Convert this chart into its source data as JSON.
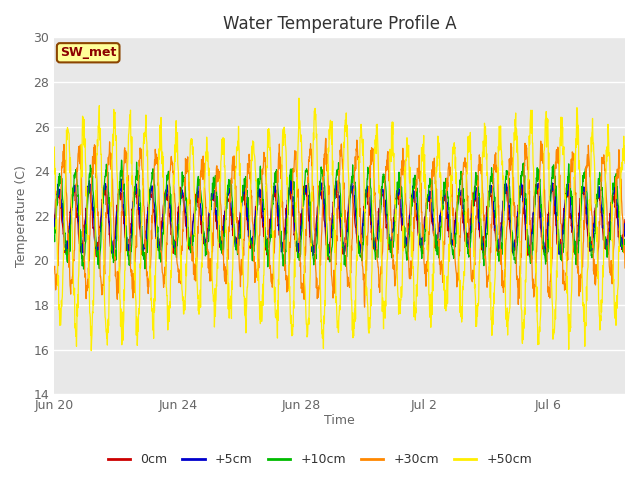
{
  "title": "Water Temperature Profile A",
  "xlabel": "Time",
  "ylabel": "Temperature (C)",
  "ylim": [
    14,
    30
  ],
  "yticks": [
    14,
    16,
    18,
    20,
    22,
    24,
    26,
    28,
    30
  ],
  "plot_bg_color": "#e8e8e8",
  "annotation_text": "SW_met",
  "annotation_color": "#8B0000",
  "annotation_bg": "#ffff99",
  "annotation_border": "#8B4500",
  "series": [
    {
      "label": "0cm",
      "color": "#cc0000",
      "amplitude": 1.2,
      "phase": 0.0,
      "noise": 0.15,
      "mean": 21.8
    },
    {
      "label": "+5cm",
      "color": "#0000cc",
      "amplitude": 1.3,
      "phase": 0.05,
      "noise": 0.15,
      "mean": 21.9
    },
    {
      "label": "+10cm",
      "color": "#00bb00",
      "amplitude": 1.8,
      "phase": 0.12,
      "noise": 0.2,
      "mean": 22.0
    },
    {
      "label": "+30cm",
      "color": "#ff8800",
      "amplitude": 2.8,
      "phase": 0.35,
      "noise": 0.3,
      "mean": 21.8
    },
    {
      "label": "+50cm",
      "color": "#ffee00",
      "amplitude": 4.2,
      "phase": 0.65,
      "noise": 0.4,
      "mean": 21.5
    }
  ],
  "xtick_labels": [
    "Jun 20",
    "Jun 24",
    "Jun 28",
    "Jul 2",
    "Jul 6"
  ],
  "xtick_day_offsets": [
    0,
    4,
    8,
    12,
    16
  ],
  "num_days": 18.5,
  "pts_per_hour": 4,
  "title_fontsize": 12,
  "axis_label_fontsize": 9,
  "tick_fontsize": 9,
  "legend_fontsize": 9,
  "figsize": [
    6.4,
    4.8
  ],
  "dpi": 100
}
